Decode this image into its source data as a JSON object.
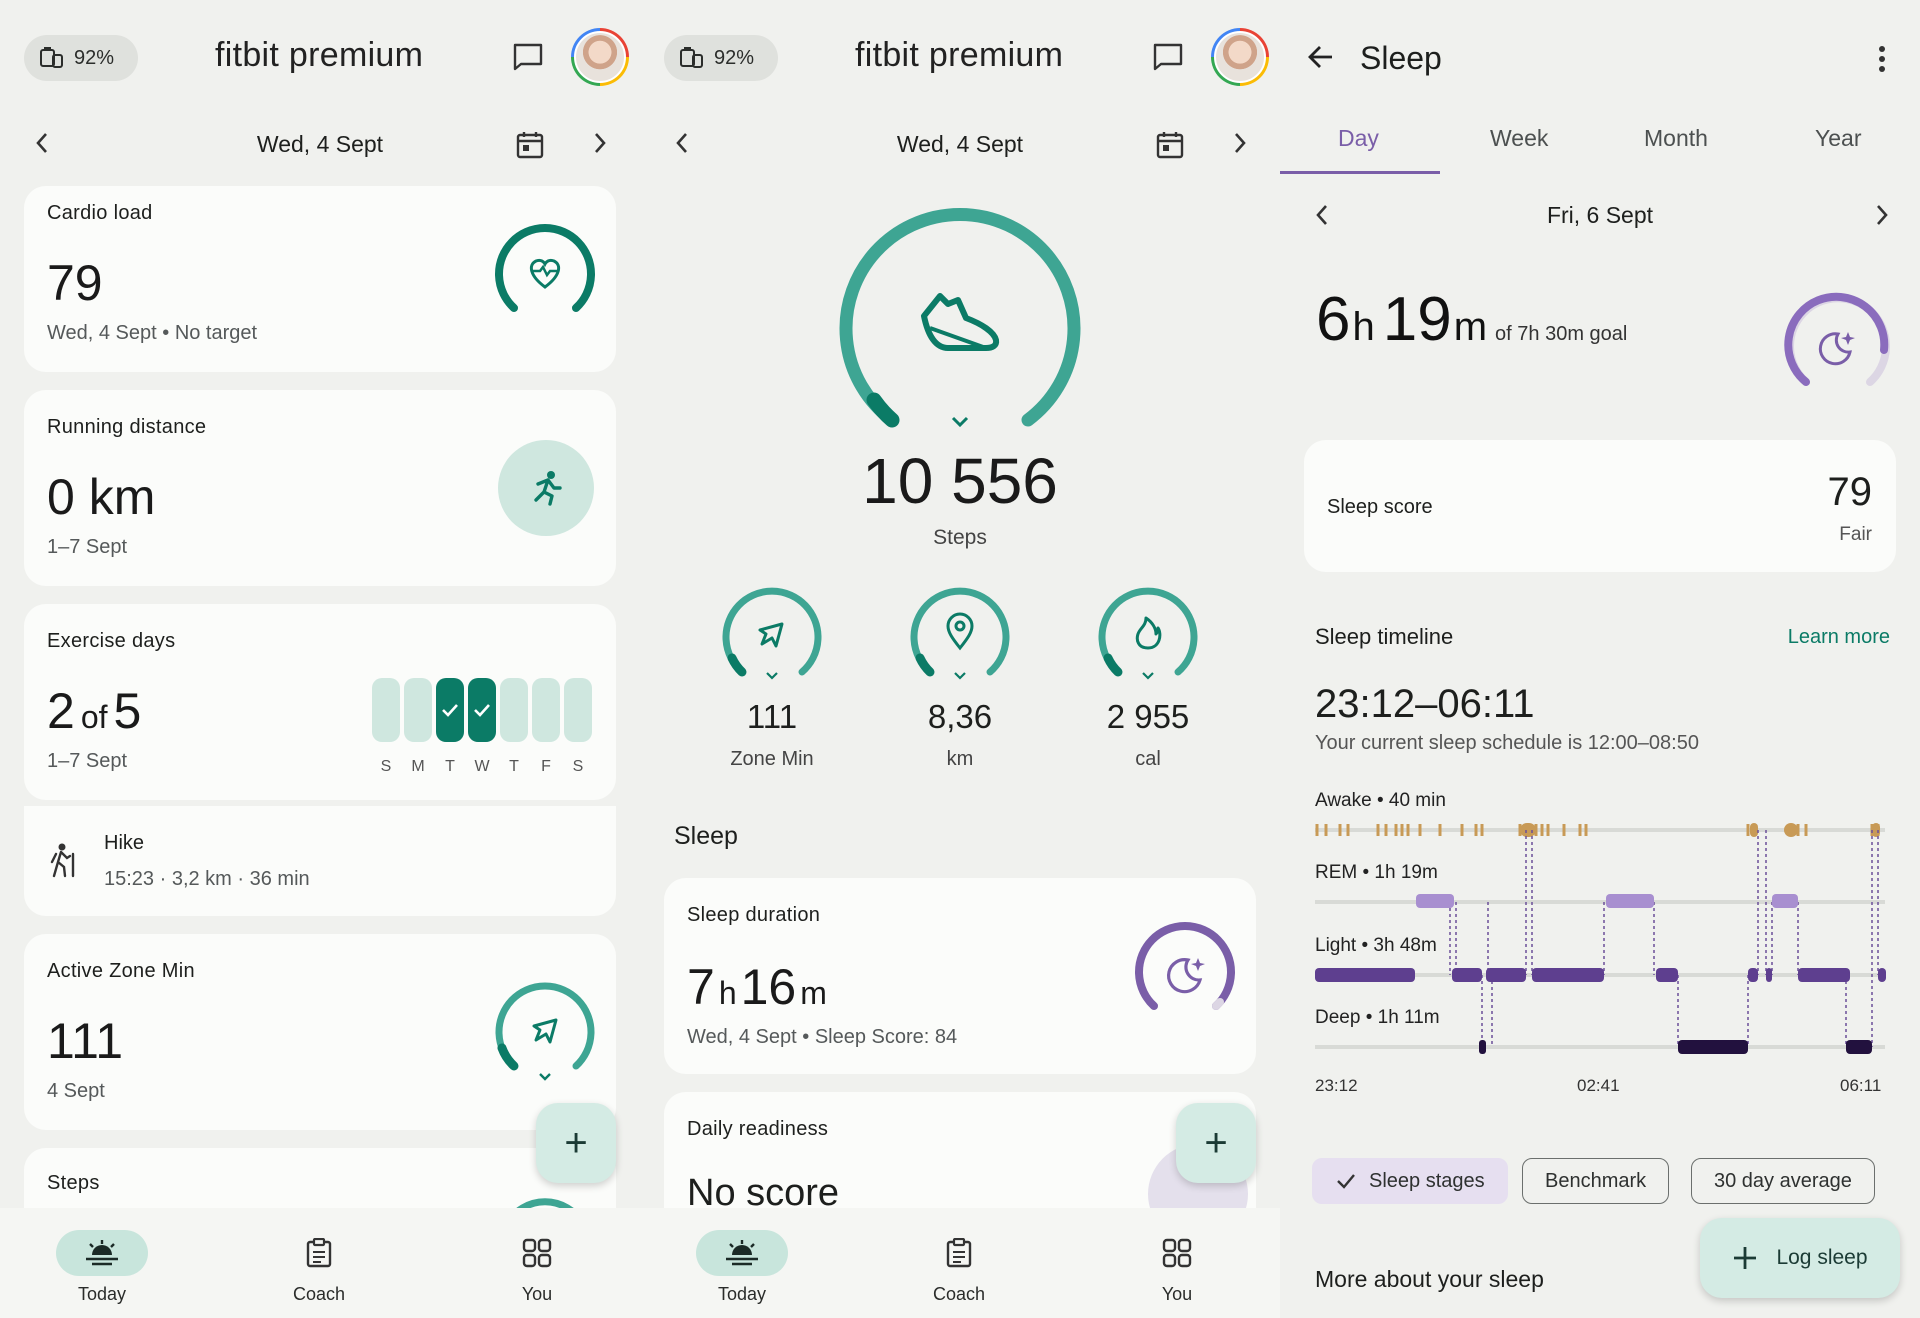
{
  "colors": {
    "teal": "#0b7b66",
    "teal_light": "#cfe7df",
    "ring_teal": "#3ea593",
    "purple": "#7a5ea8",
    "sleep_dark": "#3b2466",
    "sleep_light": "#5e3f8f",
    "rem": "#a88fd0",
    "awake": "#c89a56"
  },
  "screen1": {
    "battery": "92%",
    "brand": "fitbit premium",
    "date": "Wed, 4 Sept",
    "cardio": {
      "title": "Cardio load",
      "value": "79",
      "sub": "Wed, 4 Sept • No target",
      "icon": "heart-wave-icon"
    },
    "running": {
      "title": "Running distance",
      "value": "0 km",
      "sub": "1–7 Sept",
      "icon": "runner-icon"
    },
    "exercise": {
      "title": "Exercise days",
      "value_a": "2",
      "of": "of",
      "value_b": "5",
      "sub": "1–7 Sept",
      "days": [
        "S",
        "M",
        "T",
        "W",
        "T",
        "F",
        "S"
      ],
      "done": [
        false,
        false,
        true,
        true,
        false,
        false,
        false
      ]
    },
    "hike": {
      "title": "Hike",
      "sub": "15:23 · 3,2 km · 36 min",
      "icon": "hiker-icon"
    },
    "azm": {
      "title": "Active Zone Min",
      "value": "111",
      "sub": "4 Sept",
      "icon": "zone-arrow-icon"
    },
    "steps_title": "Steps",
    "fab": "+",
    "nav": [
      {
        "label": "Today",
        "icon": "sunrise-icon"
      },
      {
        "label": "Coach",
        "icon": "clipboard-icon"
      },
      {
        "label": "You",
        "icon": "grid-icon"
      }
    ]
  },
  "screen2": {
    "battery": "92%",
    "brand": "fitbit premium",
    "date": "Wed, 4 Sept",
    "steps": {
      "value": "10 556",
      "label": "Steps",
      "icon": "shoe-icon"
    },
    "rings": [
      {
        "value": "111",
        "label": "Zone Min",
        "icon": "zone-arrow-icon"
      },
      {
        "value": "8,36",
        "label": "km",
        "icon": "location-pin-icon"
      },
      {
        "value": "2 955",
        "label": "cal",
        "icon": "flame-icon"
      }
    ],
    "sleep_heading": "Sleep",
    "sleep_card": {
      "title": "Sleep duration",
      "hours": "7",
      "h": "h",
      "minutes": "16",
      "m": "m",
      "sub": "Wed, 4 Sept • Sleep Score: 84",
      "icon": "moon-star-icon"
    },
    "readiness": {
      "title": "Daily readiness",
      "value": "No score"
    },
    "fab": "+",
    "nav": [
      {
        "label": "Today",
        "icon": "sunrise-icon"
      },
      {
        "label": "Coach",
        "icon": "clipboard-icon"
      },
      {
        "label": "You",
        "icon": "grid-icon"
      }
    ]
  },
  "screen3": {
    "title": "Sleep",
    "tabs": [
      "Day",
      "Week",
      "Month",
      "Year"
    ],
    "active_tab": "Day",
    "date": "Fri, 6 Sept",
    "duration": {
      "hours": "6",
      "h": "h",
      "minutes": "19",
      "m": "m",
      "goal": "of 7h 30m goal"
    },
    "score": {
      "label": "Sleep score",
      "value": "79",
      "rating": "Fair"
    },
    "timeline": {
      "title": "Sleep timeline",
      "learn_more": "Learn more",
      "range": "23:12–06:11",
      "schedule": "Your current sleep schedule is 12:00–08:50",
      "stages": [
        {
          "label": "Awake • 40 min"
        },
        {
          "label": "REM • 1h 19m"
        },
        {
          "label": "Light • 3h 48m"
        },
        {
          "label": "Deep • 1h 11m"
        }
      ],
      "times": [
        "23:12",
        "02:41",
        "06:11"
      ]
    },
    "chips": [
      "Sleep stages",
      "Benchmark",
      "30 day average"
    ],
    "more": "More about your sleep",
    "log_sleep": "Log sleep"
  }
}
